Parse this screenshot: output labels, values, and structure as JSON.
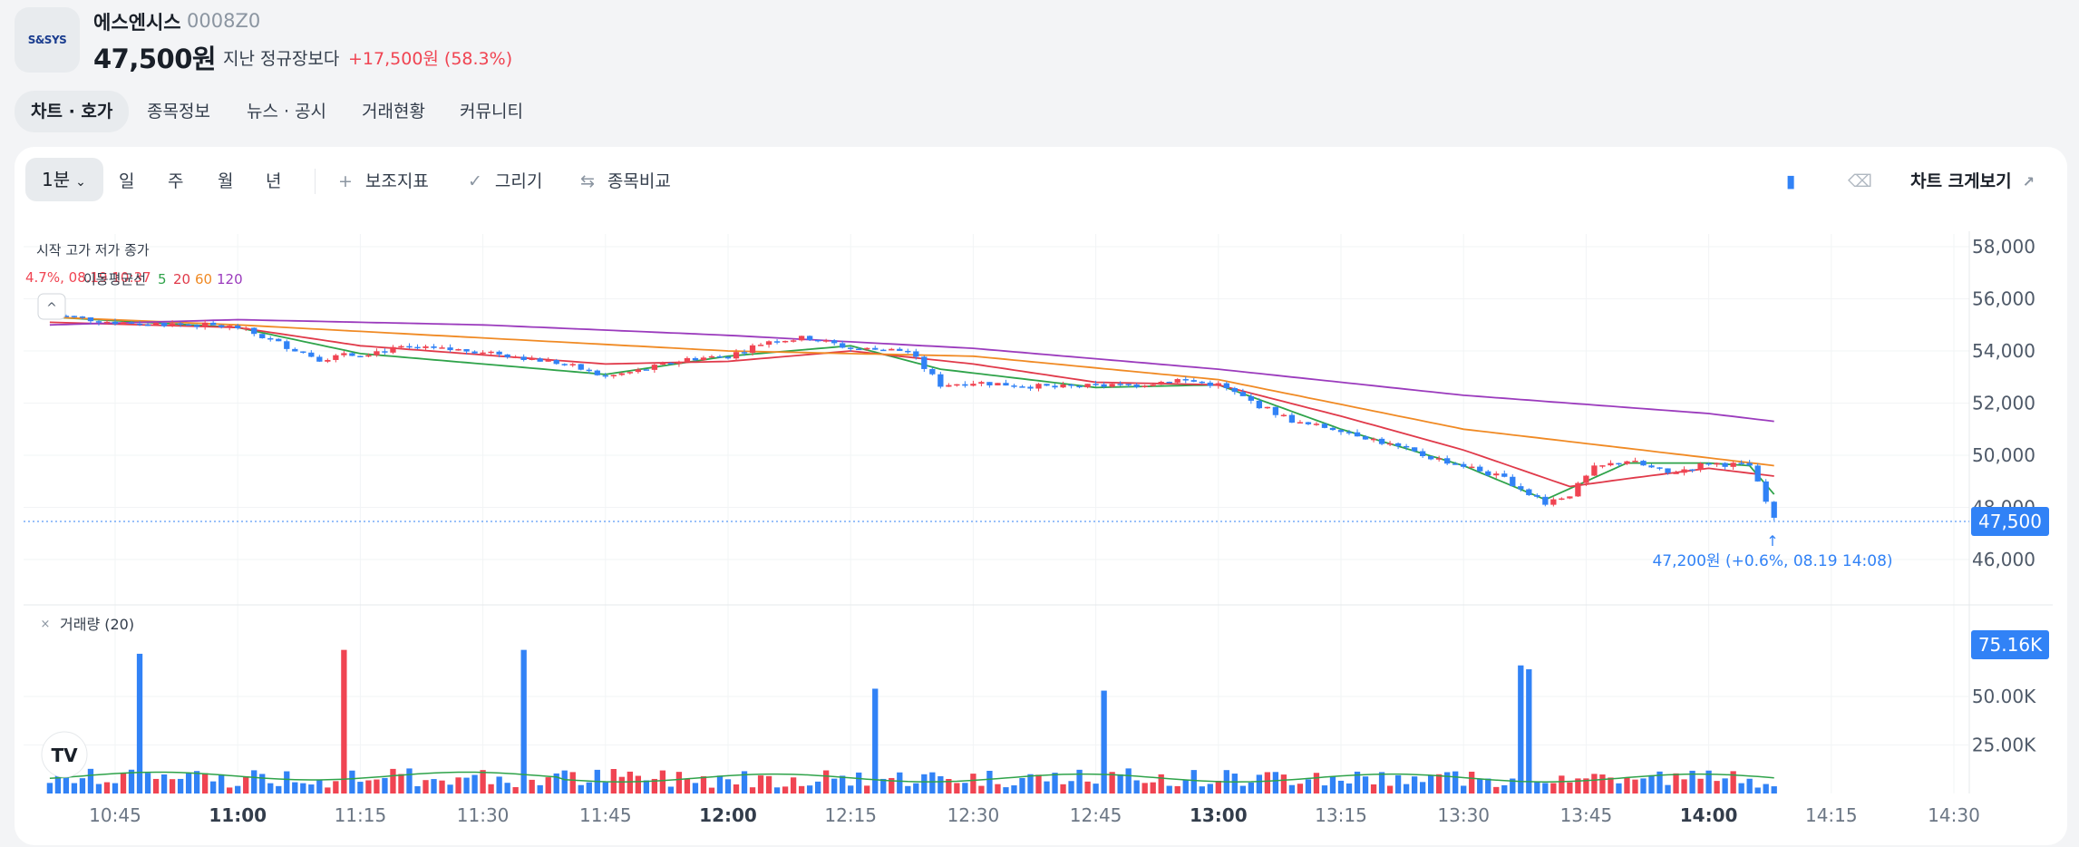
{
  "header": {
    "logo_text": "S&SYS",
    "name": "에스엔시스",
    "code": "0008Z0",
    "price": "47,500원",
    "change_label": "지난 정규장보다",
    "change_value": "+17,500원 (58.3%)"
  },
  "tabs": [
    {
      "label": "차트 · 호가",
      "active": true
    },
    {
      "label": "종목정보"
    },
    {
      "label": "뉴스 · 공시"
    },
    {
      "label": "거래현황"
    },
    {
      "label": "커뮤니티"
    }
  ],
  "toolbar": {
    "interval": "1분",
    "periods": [
      "일",
      "주",
      "월",
      "년"
    ],
    "indicator": "보조지표",
    "draw": "그리기",
    "compare": "종목비교",
    "zoom": "차트 크게보기"
  },
  "legend": {
    "ohlc": "시작 고가 저가 종가",
    "ma_label": "이동평균선",
    "ma_periods": [
      "5",
      "20",
      "60",
      "120"
    ],
    "overlay_text": "4.7%, 08.19 10:37"
  },
  "colors": {
    "up": "#f04452",
    "down": "#3182f6",
    "ma5": "#2fa34a",
    "ma20": "#e03a4a",
    "ma60": "#f08a24",
    "ma120": "#9b3bbd"
  },
  "chart_data": {
    "type": "candlestick",
    "price_ticks": [
      "58,000",
      "56,000",
      "54,000",
      "52,000",
      "50,000",
      "48,000",
      "46,000"
    ],
    "price_range": [
      45000,
      58700
    ],
    "current_price": "47,500",
    "annotation": "47,200원 (+0.6%, 08.19 14:08)",
    "volume_label": "거래량 (20)",
    "volume_ticks": [
      "50.00K",
      "25.00K"
    ],
    "current_volume": "75.16K",
    "time_ticks": [
      {
        "label": "10:45",
        "bold": false
      },
      {
        "label": "11:00",
        "bold": true
      },
      {
        "label": "11:15",
        "bold": false
      },
      {
        "label": "11:30",
        "bold": false
      },
      {
        "label": "11:45",
        "bold": false
      },
      {
        "label": "12:00",
        "bold": true
      },
      {
        "label": "12:15",
        "bold": false
      },
      {
        "label": "12:30",
        "bold": false
      },
      {
        "label": "12:45",
        "bold": false
      },
      {
        "label": "13:00",
        "bold": true
      },
      {
        "label": "13:15",
        "bold": false
      },
      {
        "label": "13:30",
        "bold": false
      },
      {
        "label": "13:45",
        "bold": false
      },
      {
        "label": "14:00",
        "bold": true
      },
      {
        "label": "14:15",
        "bold": false
      },
      {
        "label": "14:30",
        "bold": false
      }
    ],
    "close_path": [
      [
        "10:37",
        55400
      ],
      [
        "10:45",
        55100
      ],
      [
        "10:55",
        55000
      ],
      [
        "11:00",
        54900
      ],
      [
        "11:05",
        54300
      ],
      [
        "11:10",
        53700
      ],
      [
        "11:15",
        53900
      ],
      [
        "11:20",
        54100
      ],
      [
        "11:30",
        54000
      ],
      [
        "11:40",
        53500
      ],
      [
        "11:45",
        53000
      ],
      [
        "11:50",
        53300
      ],
      [
        "11:55",
        53700
      ],
      [
        "12:00",
        53800
      ],
      [
        "12:05",
        54400
      ],
      [
        "12:10",
        54500
      ],
      [
        "12:15",
        54100
      ],
      [
        "12:22",
        54000
      ],
      [
        "12:26",
        52700
      ],
      [
        "12:30",
        52800
      ],
      [
        "12:40",
        52600
      ],
      [
        "12:50",
        52700
      ],
      [
        "12:55",
        52900
      ],
      [
        "13:00",
        52700
      ],
      [
        "13:05",
        51900
      ],
      [
        "13:10",
        51200
      ],
      [
        "13:15",
        51000
      ],
      [
        "13:20",
        50500
      ],
      [
        "13:25",
        50000
      ],
      [
        "13:30",
        49600
      ],
      [
        "13:35",
        49100
      ],
      [
        "13:40",
        48200
      ],
      [
        "13:43",
        48500
      ],
      [
        "13:46",
        49500
      ],
      [
        "13:50",
        49800
      ],
      [
        "13:55",
        49300
      ],
      [
        "14:00",
        49700
      ],
      [
        "14:05",
        49600
      ],
      [
        "14:08",
        47500
      ]
    ],
    "ma_paths": {
      "5": [
        [
          "10:37",
          55300
        ],
        [
          "11:00",
          54900
        ],
        [
          "11:15",
          53900
        ],
        [
          "11:45",
          53100
        ],
        [
          "12:00",
          53800
        ],
        [
          "12:15",
          54200
        ],
        [
          "12:26",
          53300
        ],
        [
          "12:45",
          52600
        ],
        [
          "13:00",
          52700
        ],
        [
          "13:15",
          51000
        ],
        [
          "13:30",
          49600
        ],
        [
          "13:40",
          48300
        ],
        [
          "13:50",
          49700
        ],
        [
          "14:00",
          49700
        ],
        [
          "14:05",
          49600
        ],
        [
          "14:08",
          48500
        ]
      ],
      "20": [
        [
          "10:37",
          55100
        ],
        [
          "11:00",
          54900
        ],
        [
          "11:15",
          54200
        ],
        [
          "11:45",
          53500
        ],
        [
          "12:00",
          53600
        ],
        [
          "12:15",
          54000
        ],
        [
          "12:30",
          53500
        ],
        [
          "12:45",
          52800
        ],
        [
          "13:00",
          52700
        ],
        [
          "13:15",
          51500
        ],
        [
          "13:30",
          50200
        ],
        [
          "13:43",
          48800
        ],
        [
          "13:50",
          49100
        ],
        [
          "14:00",
          49500
        ],
        [
          "14:08",
          49200
        ]
      ],
      "60": [
        [
          "10:37",
          55300
        ],
        [
          "11:00",
          55000
        ],
        [
          "11:30",
          54500
        ],
        [
          "12:00",
          54000
        ],
        [
          "12:30",
          53800
        ],
        [
          "13:00",
          52900
        ],
        [
          "13:30",
          51000
        ],
        [
          "14:00",
          49900
        ],
        [
          "14:08",
          49600
        ]
      ],
      "120": [
        [
          "10:37",
          55000
        ],
        [
          "11:00",
          55200
        ],
        [
          "11:30",
          55000
        ],
        [
          "12:00",
          54600
        ],
        [
          "12:30",
          54100
        ],
        [
          "13:00",
          53300
        ],
        [
          "13:30",
          52300
        ],
        [
          "14:00",
          51600
        ],
        [
          "14:08",
          51300
        ]
      ]
    }
  }
}
